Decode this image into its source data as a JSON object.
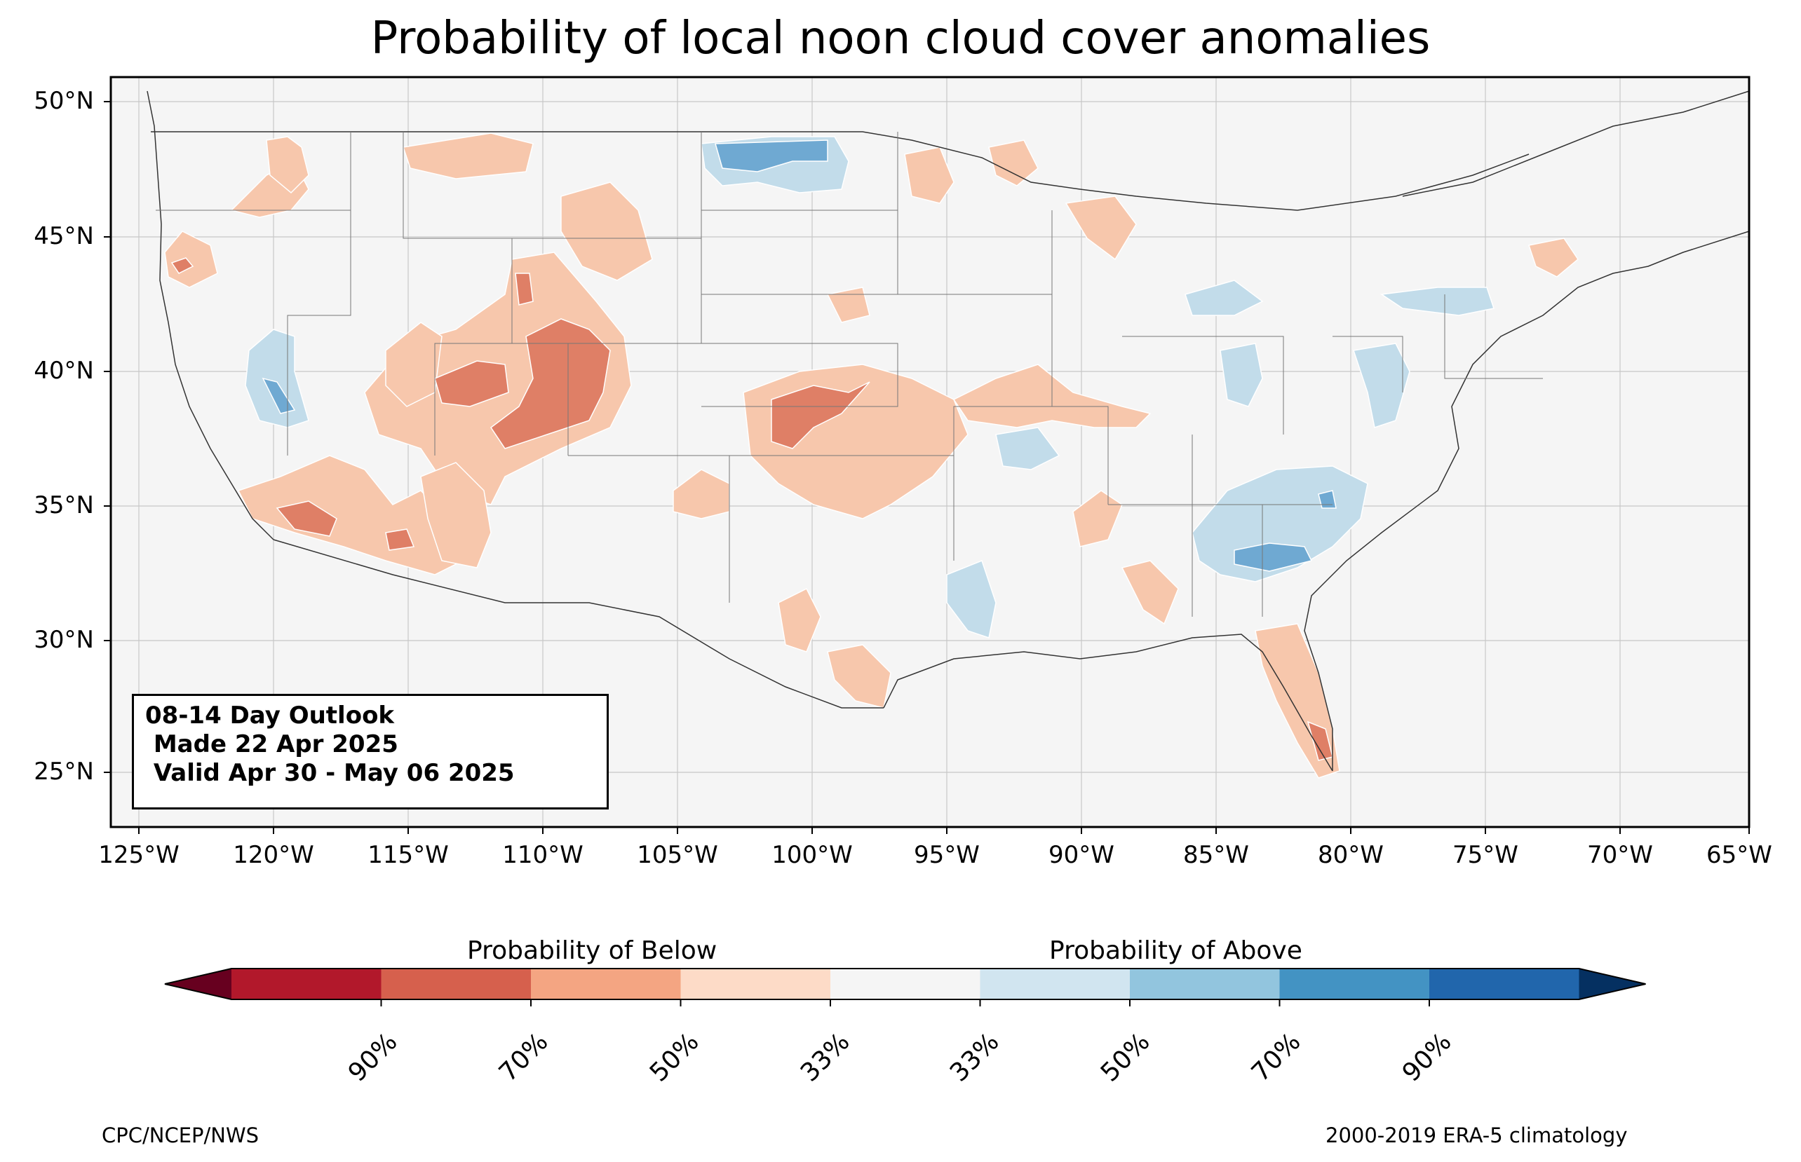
{
  "title": "Probability of local noon cloud cover anomalies",
  "outlook": {
    "line1": "08-14 Day Outlook",
    "line2": " Made 22 Apr 2025",
    "line3": " Valid Apr 30 - May 06 2025"
  },
  "axes": {
    "lat_ticks": [
      "50°N",
      "45°N",
      "40°N",
      "35°N",
      "30°N",
      "25°N"
    ],
    "lon_ticks": [
      "125°W",
      "120°W",
      "115°W",
      "110°W",
      "105°W",
      "100°W",
      "95°W",
      "90°W",
      "85°W",
      "80°W",
      "75°W",
      "70°W",
      "65°W"
    ]
  },
  "colorbar": {
    "below_label": "Probability of Below",
    "above_label": "Probability of Above",
    "tick_labels": [
      "90%",
      "70%",
      "50%",
      "33%",
      "33%",
      "50%",
      "70%",
      "90%"
    ],
    "colors": [
      "#67001f",
      "#b2182b",
      "#d6604d",
      "#f4a582",
      "#fddbc7",
      "#f5f5f5",
      "#d1e5f0",
      "#92c5de",
      "#4393c3",
      "#2166ac",
      "#053061"
    ]
  },
  "footer": {
    "left": "CPC/NCEP/NWS",
    "right": "2000-2019 ERA-5 climatology"
  },
  "colors": {
    "background": "#f5f5f5",
    "below_33": "#f7c7ac",
    "below_50": "#df7f66",
    "below_70": "#c0392b",
    "above_33": "#c2dcea",
    "above_50": "#6fa9d2",
    "above_70": "#2f6fae"
  }
}
